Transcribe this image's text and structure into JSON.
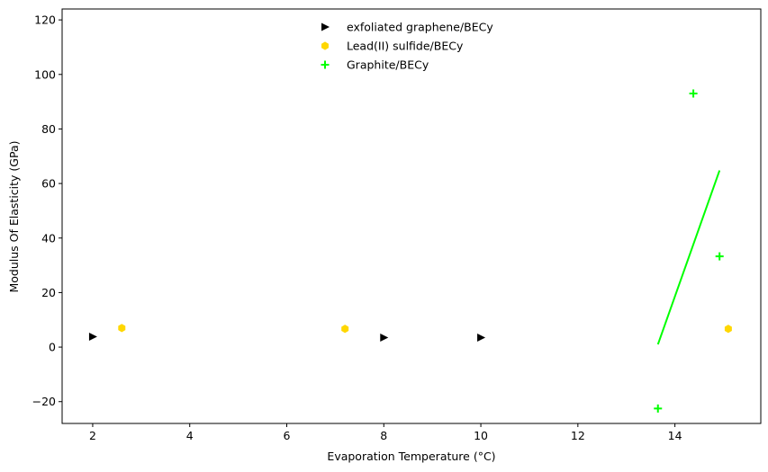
{
  "chart_data": {
    "type": "scatter",
    "title": "",
    "xlabel": "Evaporation Temperature (°C)",
    "ylabel": "Modulus Of Elasticity (GPa)",
    "xlim": [
      1.37,
      15.77
    ],
    "ylim": [
      -28.0,
      124.0
    ],
    "xticks": [
      2,
      4,
      6,
      8,
      10,
      12,
      14
    ],
    "yticks": [
      -20,
      0,
      20,
      40,
      60,
      80,
      100,
      120
    ],
    "xtick_labels": [
      "2",
      "4",
      "6",
      "8",
      "10",
      "12",
      "14"
    ],
    "ytick_labels": [
      "−20",
      "0",
      "20",
      "40",
      "60",
      "80",
      "100",
      "120"
    ],
    "grid": false,
    "legend_position": "top-center",
    "series": [
      {
        "name": "exfoliated graphene/BECy",
        "marker": "triangle-right",
        "color": "#000000",
        "points": [
          [
            2.0,
            3.8
          ],
          [
            8.0,
            3.5
          ],
          [
            10.0,
            3.5
          ]
        ]
      },
      {
        "name": "Lead(II) sulfide/BECy",
        "marker": "hexagon",
        "color": "#ffd700",
        "points": [
          [
            2.6,
            7.0
          ],
          [
            7.2,
            6.7
          ],
          [
            15.1,
            6.7
          ]
        ]
      },
      {
        "name": "Graphite/BECy",
        "marker": "plus",
        "color": "#00ff00",
        "points": [
          [
            13.65,
            -22.5
          ],
          [
            14.38,
            93.0
          ],
          [
            14.92,
            33.3
          ]
        ]
      }
    ],
    "lines": [
      {
        "color": "#00ff00",
        "points": [
          [
            13.65,
            1.0
          ],
          [
            14.92,
            64.8
          ]
        ]
      }
    ]
  }
}
